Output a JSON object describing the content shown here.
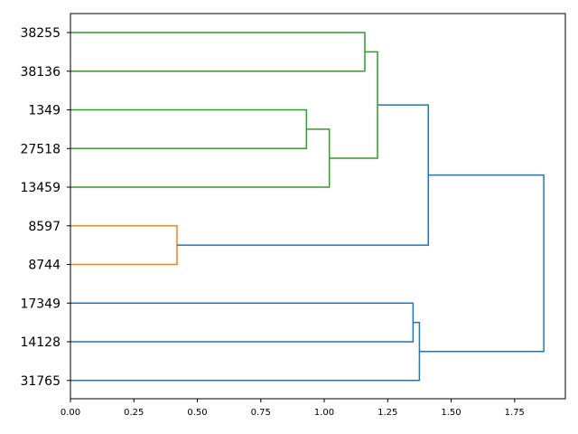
{
  "chart_data": {
    "type": "dendrogram",
    "orientation": "horizontal",
    "title": "",
    "xlabel": "",
    "ylabel": "",
    "xlim": [
      0,
      1.95
    ],
    "x_ticks": [
      0.0,
      0.25,
      0.5,
      0.75,
      1.0,
      1.25,
      1.5,
      1.75
    ],
    "x_tick_labels": [
      "0.00",
      "0.25",
      "0.50",
      "0.75",
      "1.00",
      "1.25",
      "1.50",
      "1.75"
    ],
    "leaves_top_to_bottom": [
      "38255",
      "38136",
      "1349",
      "27518",
      "13459",
      "8597",
      "8744",
      "17349",
      "14128",
      "31765"
    ],
    "grid": false,
    "legend": "none",
    "colors": {
      "green": "#2ca02c",
      "orange": "#ff7f0e",
      "blue": "#1f77b4"
    },
    "links": [
      {
        "left": "38255",
        "right": "38136",
        "distance": 1.16,
        "color": "green"
      },
      {
        "left": "1349",
        "right": "27518",
        "distance": 0.93,
        "color": "green"
      },
      {
        "left": "L2",
        "right": "13459",
        "distance": 1.02,
        "color": "green"
      },
      {
        "left": "L1",
        "right": "L3",
        "distance": 1.21,
        "color": "green"
      },
      {
        "left": "8597",
        "right": "8744",
        "distance": 0.42,
        "color": "orange"
      },
      {
        "left": "L4",
        "right": "L5",
        "distance": 1.41,
        "color": "blue"
      },
      {
        "left": "17349",
        "right": "14128",
        "distance": 1.35,
        "color": "blue"
      },
      {
        "left": "L7",
        "right": "31765",
        "distance": 1.375,
        "color": "blue"
      },
      {
        "left": "L6",
        "right": "L8",
        "distance": 1.865,
        "color": "blue"
      }
    ]
  }
}
